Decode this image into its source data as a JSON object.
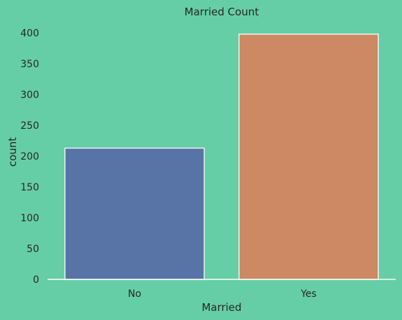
{
  "chart_data": {
    "type": "bar",
    "title": "Married Count",
    "xlabel": "Married",
    "ylabel": "count",
    "categories": [
      "No",
      "Yes"
    ],
    "values": [
      213,
      398
    ],
    "ylim": [
      0,
      400
    ],
    "yticks": [
      0,
      50,
      100,
      150,
      200,
      250,
      300,
      350,
      400
    ],
    "colors": [
      "#5874a6",
      "#cd8963"
    ],
    "background": "#66cea6",
    "grid": false,
    "legend": "none"
  }
}
